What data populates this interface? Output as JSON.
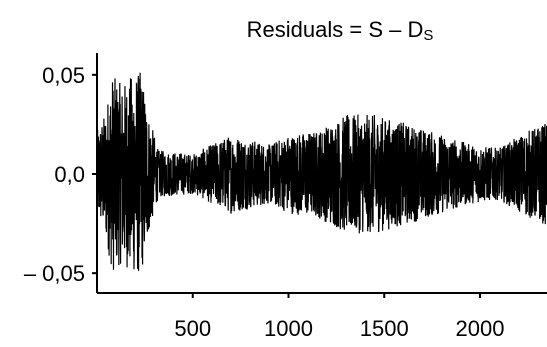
{
  "chart_data": {
    "type": "line",
    "title": "Residuals = S – D",
    "title_subscript": "S",
    "xlabel": "",
    "ylabel": "",
    "xlim": [
      0,
      2350
    ],
    "ylim": [
      -0.06,
      0.06
    ],
    "x_ticks": [
      {
        "value": 500,
        "label": "500"
      },
      {
        "value": 1000,
        "label": "1000"
      },
      {
        "value": 1500,
        "label": "1500"
      },
      {
        "value": 2000,
        "label": "2000"
      }
    ],
    "y_ticks": [
      {
        "value": 0.05,
        "label": "0,05"
      },
      {
        "value": 0.0,
        "label": "0,0"
      },
      {
        "value": -0.05,
        "label": "– 0,05"
      }
    ],
    "grid": false,
    "legend": "none",
    "line_color": "#000000",
    "n_points": 2350,
    "series": [
      {
        "envelope": [
          {
            "x": 0,
            "amp": 0.022
          },
          {
            "x": 40,
            "amp": 0.03
          },
          {
            "x": 80,
            "amp": 0.05
          },
          {
            "x": 130,
            "amp": 0.045
          },
          {
            "x": 180,
            "amp": 0.05
          },
          {
            "x": 230,
            "amp": 0.052
          },
          {
            "x": 270,
            "amp": 0.03
          },
          {
            "x": 320,
            "amp": 0.012
          },
          {
            "x": 500,
            "amp": 0.01
          },
          {
            "x": 700,
            "amp": 0.02
          },
          {
            "x": 900,
            "amp": 0.015
          },
          {
            "x": 1000,
            "amp": 0.02
          },
          {
            "x": 1150,
            "amp": 0.022
          },
          {
            "x": 1300,
            "amp": 0.03
          },
          {
            "x": 1450,
            "amp": 0.03
          },
          {
            "x": 1600,
            "amp": 0.026
          },
          {
            "x": 1800,
            "amp": 0.02
          },
          {
            "x": 1950,
            "amp": 0.015
          },
          {
            "x": 2100,
            "amp": 0.013
          },
          {
            "x": 2250,
            "amp": 0.022
          },
          {
            "x": 2350,
            "amp": 0.026
          }
        ]
      }
    ]
  }
}
